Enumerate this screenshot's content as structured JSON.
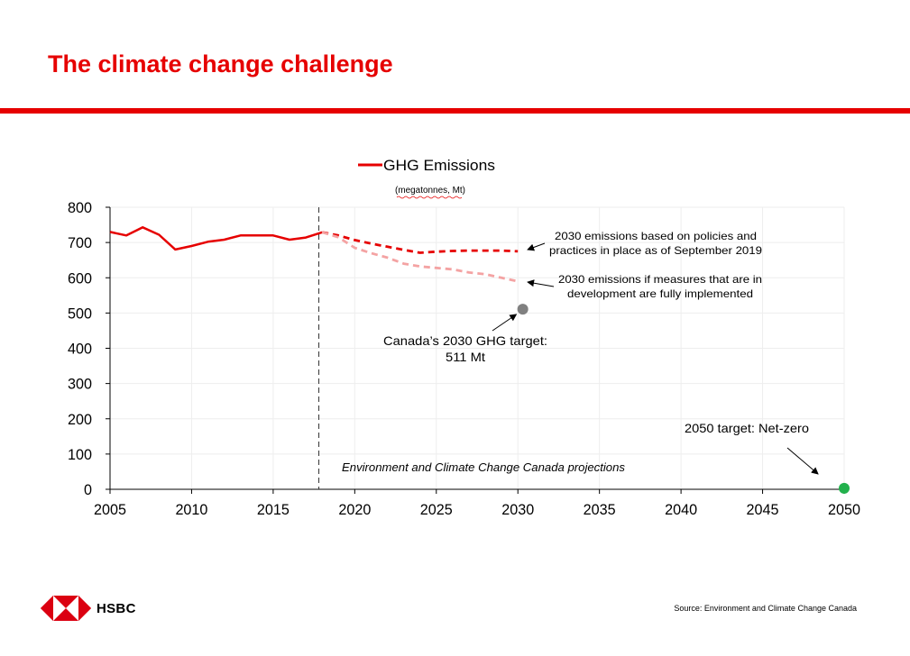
{
  "slide": {
    "title": "The climate change challenge",
    "source": "Source: Environment and Climate Change Canada",
    "logo_text": "HSBC"
  },
  "colors": {
    "brand_red": "#e60000",
    "series_actual": "#e60000",
    "series_policies": "#e60000",
    "series_measures": "#f4a3a3",
    "target_2030": "#808080",
    "target_2050": "#22b14c"
  },
  "chart_data": {
    "type": "line",
    "legend": {
      "label": "GHG Emissions",
      "sublabel": "(megatonnes, Mt)",
      "placement": "top-center"
    },
    "xlim": [
      2005,
      2050
    ],
    "ylim": [
      0,
      800
    ],
    "xticks": [
      2005,
      2010,
      2015,
      2020,
      2025,
      2030,
      2035,
      2040,
      2045,
      2050
    ],
    "yticks": [
      0,
      100,
      200,
      300,
      400,
      500,
      600,
      700,
      800
    ],
    "grid": true,
    "divider_x": 2017.8,
    "series": [
      {
        "name": "GHG Emissions",
        "style": "solid",
        "x": [
          2005,
          2006,
          2007,
          2008,
          2009,
          2010,
          2011,
          2012,
          2013,
          2014,
          2015,
          2016,
          2017,
          2018
        ],
        "y": [
          730,
          720,
          743,
          722,
          680,
          690,
          702,
          708,
          720,
          720,
          720,
          708,
          714,
          729
        ]
      },
      {
        "style": "dashed",
        "x": [
          2018,
          2019,
          2020,
          2021,
          2022,
          2023,
          2024,
          2025,
          2026,
          2027,
          2028,
          2029,
          2030
        ],
        "y": [
          729,
          720,
          707,
          697,
          688,
          679,
          671,
          674,
          676,
          677,
          677,
          677,
          675
        ]
      },
      {
        "style": "dashed-light",
        "x": [
          2018,
          2019,
          2020,
          2021,
          2022,
          2023,
          2024,
          2025,
          2026,
          2027,
          2028,
          2029,
          2030
        ],
        "y": [
          729,
          715,
          685,
          670,
          657,
          640,
          632,
          628,
          624,
          615,
          610,
          600,
          590
        ]
      }
    ],
    "points": [
      {
        "x": 2030.3,
        "y": 511,
        "kind": "target-2030"
      },
      {
        "x": 2050,
        "y": 3,
        "kind": "target-2050"
      }
    ],
    "annotations": {
      "policies_line1": "2030 emissions based on policies and",
      "policies_line2": "practices in place as of September 2019",
      "measures_line1": "2030 emissions if measures that are in",
      "measures_line2": "development are fully implemented",
      "target_line1": "Canada’s 2030 GHG target:",
      "target_line2": "511 Mt",
      "netzero": "2050 target: Net-zero",
      "projections": "Environment and Climate Change Canada projections"
    }
  }
}
